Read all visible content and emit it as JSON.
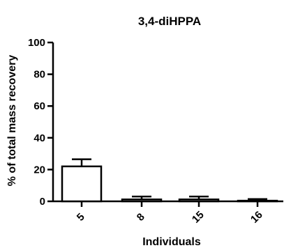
{
  "chart_data": {
    "type": "bar",
    "title": "3,4-diHPPA",
    "xlabel": "Individuals",
    "ylabel": "% of total mass recovery",
    "categories": [
      "5",
      "8",
      "15",
      "16"
    ],
    "values": [
      22,
      1.2,
      1.2,
      0.4
    ],
    "errors": [
      4.5,
      1.8,
      1.8,
      1.0
    ],
    "ylim": [
      0,
      100
    ],
    "yticks": [
      "0",
      "20",
      "40",
      "60",
      "80",
      "100"
    ],
    "grid": false,
    "legend": "none"
  }
}
